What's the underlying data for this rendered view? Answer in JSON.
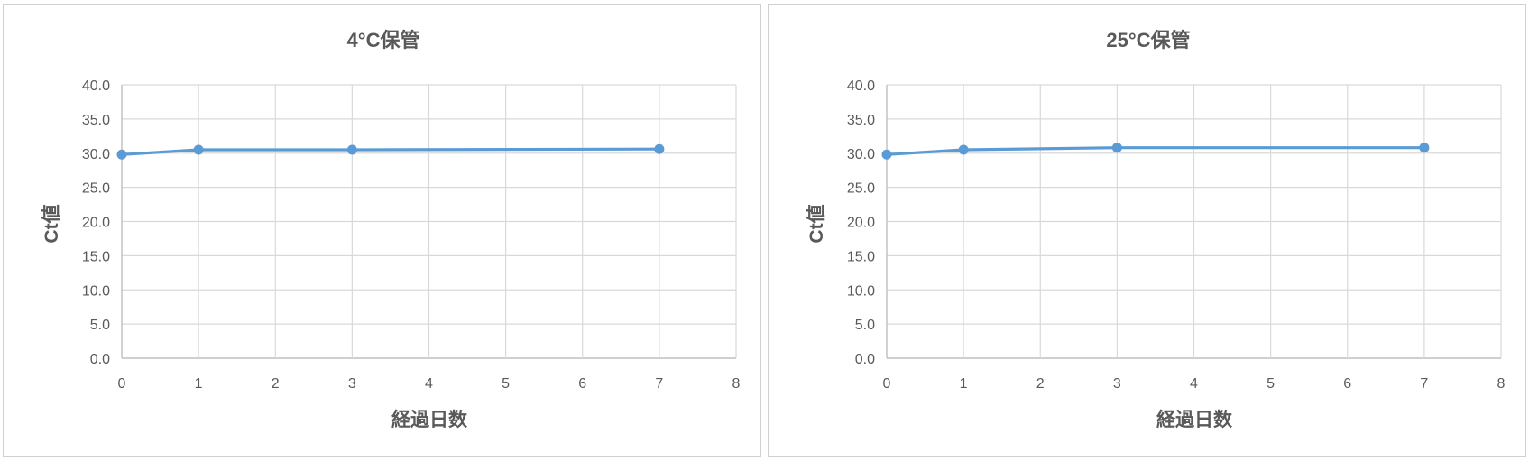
{
  "chart_data": [
    {
      "type": "line",
      "title": "4°C保管",
      "xlabel": "経過日数",
      "ylabel": "Ct値",
      "xlim": [
        0,
        8
      ],
      "ylim": [
        0,
        40
      ],
      "x_ticks": [
        "0",
        "1",
        "2",
        "3",
        "4",
        "5",
        "6",
        "7",
        "8"
      ],
      "y_ticks": [
        "0.0",
        "5.0",
        "10.0",
        "15.0",
        "20.0",
        "25.0",
        "30.0",
        "35.0",
        "40.0"
      ],
      "grid": true,
      "series": [
        {
          "x": [
            0,
            1,
            3,
            7
          ],
          "y": [
            29.8,
            30.5,
            30.5,
            30.6
          ],
          "color": "#5b9bd5"
        }
      ]
    },
    {
      "type": "line",
      "title": "25°C保管",
      "xlabel": "経過日数",
      "ylabel": "Ct値",
      "xlim": [
        0,
        8
      ],
      "ylim": [
        0,
        40
      ],
      "x_ticks": [
        "0",
        "1",
        "2",
        "3",
        "4",
        "5",
        "6",
        "7",
        "8"
      ],
      "y_ticks": [
        "0.0",
        "5.0",
        "10.0",
        "15.0",
        "20.0",
        "25.0",
        "30.0",
        "35.0",
        "40.0"
      ],
      "grid": true,
      "series": [
        {
          "x": [
            0,
            1,
            3,
            7
          ],
          "y": [
            29.8,
            30.5,
            30.8,
            30.8
          ],
          "color": "#5b9bd5"
        }
      ]
    }
  ]
}
